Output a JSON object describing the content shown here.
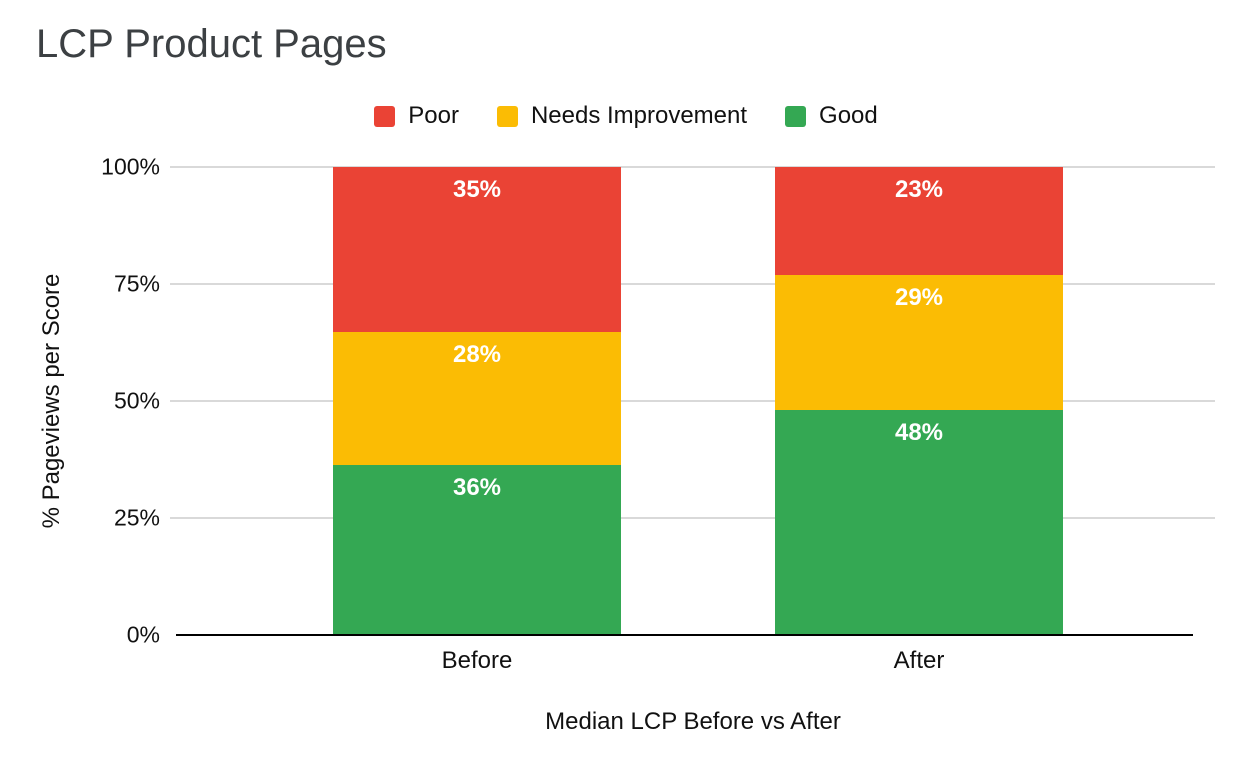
{
  "chart_data": {
    "type": "bar",
    "stacked": true,
    "title": "LCP Product Pages",
    "xlabel": "Median LCP Before vs After",
    "ylabel": "% Pageviews per Score",
    "categories": [
      "Before",
      "After"
    ],
    "series": [
      {
        "name": "Poor",
        "color": "#EA4335",
        "values": [
          35,
          23
        ]
      },
      {
        "name": "Needs Improvement",
        "color": "#FBBC04",
        "values": [
          28,
          29
        ]
      },
      {
        "name": "Good",
        "color": "#34A853",
        "values": [
          36,
          48
        ]
      }
    ],
    "series_stack_order": "top-to-bottom",
    "data_label_suffix": "%",
    "data_label_color": "#ffffff",
    "y_ticks": [
      "100%",
      "75%",
      "50%",
      "25%",
      "0%"
    ],
    "ylim": [
      0,
      100
    ],
    "grid": true,
    "gridline_color": "#d9d9d9",
    "axis_line_color": "#000000",
    "legend_position": "top",
    "title_color": "#3c4043",
    "background_color": "#ffffff"
  }
}
